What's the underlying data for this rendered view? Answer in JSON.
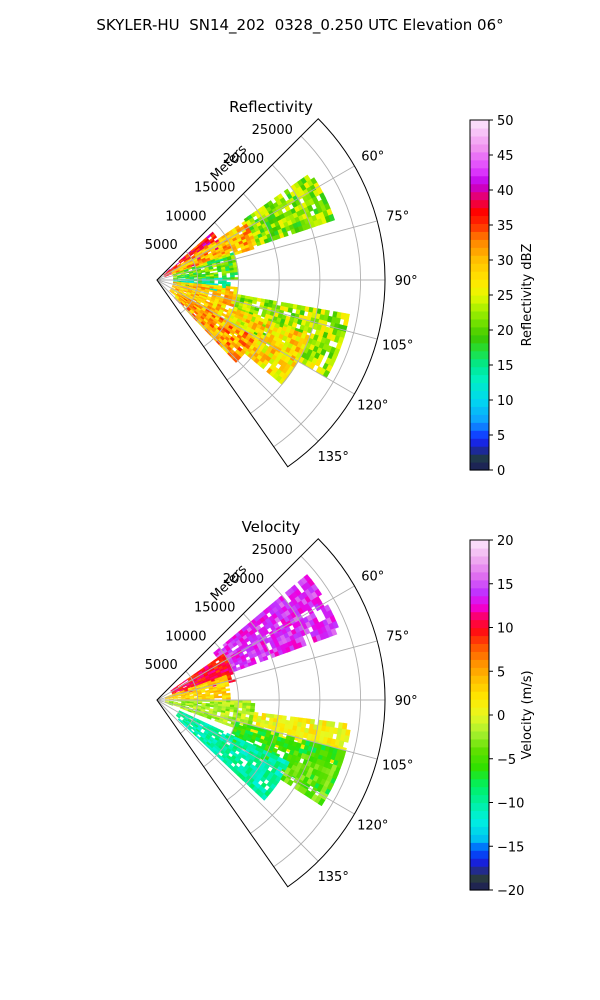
{
  "suptitle": "SKYLER-HU  SN14_202  0328_0.250 UTC Elevation 06°",
  "chart_data": [
    {
      "type": "heatmap",
      "projection": "polar-sector",
      "title": "Reflectivity",
      "range_label": "Meters",
      "range_ticks": [
        5000,
        10000,
        15000,
        20000,
        25000
      ],
      "range_tick_labels": [
        "5000",
        "10000",
        "15000",
        "20000",
        "25000"
      ],
      "range_limit": [
        0,
        28000
      ],
      "azimuth_limit_deg": [
        45,
        145
      ],
      "azimuth_ticks_deg": [
        60,
        75,
        90,
        105,
        120,
        135
      ],
      "azimuth_tick_labels": [
        "60°",
        "75°",
        "90°",
        "105°",
        "120°",
        "135°"
      ],
      "grid": true,
      "colorbar": {
        "label": "Reflectivity dBZ",
        "min": 0,
        "max": 50,
        "ticks": [
          0,
          5,
          10,
          15,
          20,
          25,
          30,
          35,
          40,
          45,
          50
        ],
        "tick_labels": [
          "0",
          "5",
          "10",
          "15",
          "20",
          "25",
          "30",
          "35",
          "40",
          "45",
          "50"
        ]
      },
      "echo_regions": [
        {
          "az": [
            49,
            68
          ],
          "range": [
            1000,
            9000
          ],
          "value": 37
        },
        {
          "az": [
            56,
            72
          ],
          "range": [
            2000,
            13000
          ],
          "value": 30
        },
        {
          "az": [
            55,
            70
          ],
          "range": [
            13000,
            23000
          ],
          "value": 22
        },
        {
          "az": [
            70,
            88
          ],
          "range": [
            2000,
            10000
          ],
          "value": 20
        },
        {
          "az": [
            88,
            100
          ],
          "range": [
            2000,
            9000
          ],
          "value": 14
        },
        {
          "az": [
            95,
            130
          ],
          "range": [
            2000,
            10000
          ],
          "value": 29
        },
        {
          "az": [
            100,
            118
          ],
          "range": [
            10000,
            24000
          ],
          "value": 23
        },
        {
          "az": [
            110,
            128
          ],
          "range": [
            10000,
            20000
          ],
          "value": 28
        },
        {
          "az": [
            120,
            135
          ],
          "range": [
            3000,
            14000
          ],
          "value": 31
        }
      ]
    },
    {
      "type": "heatmap",
      "projection": "polar-sector",
      "title": "Velocity",
      "range_label": "Meters",
      "range_ticks": [
        5000,
        10000,
        15000,
        20000,
        25000
      ],
      "range_tick_labels": [
        "5000",
        "10000",
        "15000",
        "20000",
        "25000"
      ],
      "range_limit": [
        0,
        28000
      ],
      "azimuth_limit_deg": [
        45,
        145
      ],
      "azimuth_ticks_deg": [
        60,
        75,
        90,
        105,
        120,
        135
      ],
      "azimuth_tick_labels": [
        "60°",
        "75°",
        "90°",
        "105°",
        "120°",
        "135°"
      ],
      "grid": true,
      "colorbar": {
        "label": "Velocity (m/s)",
        "min": -20,
        "max": 20,
        "ticks": [
          -20,
          -15,
          -10,
          -5,
          0,
          5,
          10,
          15,
          20
        ],
        "tick_labels": [
          "−20",
          "−15",
          "−10",
          "−5",
          "0",
          "5",
          "10",
          "15",
          "20"
        ]
      },
      "echo_regions": [
        {
          "az": [
            50,
            68
          ],
          "range": [
            9000,
            24000
          ],
          "value": 14
        },
        {
          "az": [
            55,
            75
          ],
          "range": [
            2000,
            10000
          ],
          "value": 10
        },
        {
          "az": [
            70,
            90
          ],
          "range": [
            1000,
            9000
          ],
          "value": 3
        },
        {
          "az": [
            90,
            108
          ],
          "range": [
            1000,
            12000
          ],
          "value": -2
        },
        {
          "az": [
            97,
            110
          ],
          "range": [
            12000,
            24000
          ],
          "value": 1
        },
        {
          "az": [
            105,
            118
          ],
          "range": [
            10000,
            24000
          ],
          "value": -6
        },
        {
          "az": [
            115,
            132
          ],
          "range": [
            3000,
            18000
          ],
          "value": -10
        },
        {
          "az": [
            110,
            122
          ],
          "range": [
            18000,
            24000
          ],
          "value": -4
        }
      ]
    }
  ]
}
